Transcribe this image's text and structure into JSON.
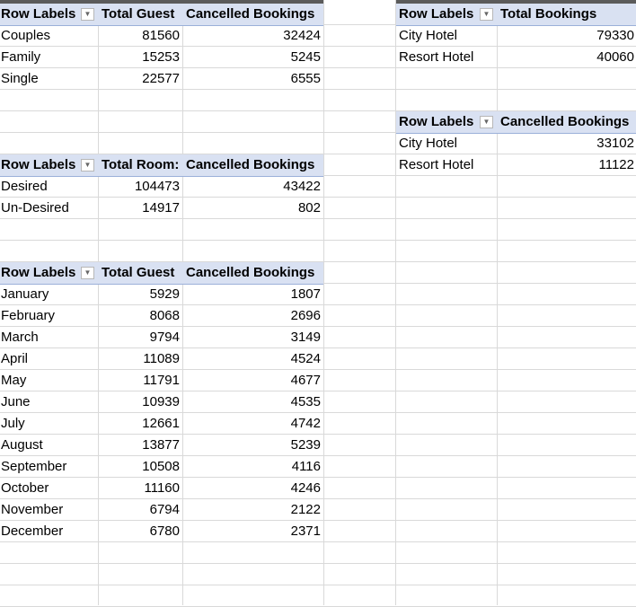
{
  "dropdown_icon": "filter-dropdown-icon",
  "pivots": {
    "guest_type": {
      "headers": [
        "Row Labels",
        "Total Guest",
        "Cancelled Bookings"
      ],
      "rows": [
        [
          "Couples",
          "81560",
          "32424"
        ],
        [
          "Family",
          "15253",
          "5245"
        ],
        [
          "Single",
          "22577",
          "6555"
        ]
      ]
    },
    "rooms": {
      "headers": [
        "Row Labels",
        "Total Room:",
        "Cancelled Bookings"
      ],
      "rows": [
        [
          "Desired",
          "104473",
          "43422"
        ],
        [
          "Un-Desired",
          "14917",
          "802"
        ]
      ]
    },
    "months": {
      "headers": [
        "Row Labels",
        "Total Guest",
        "Cancelled Bookings"
      ],
      "rows": [
        [
          "January",
          "5929",
          "1807"
        ],
        [
          "February",
          "8068",
          "2696"
        ],
        [
          "March",
          "9794",
          "3149"
        ],
        [
          "April",
          "11089",
          "4524"
        ],
        [
          "May",
          "11791",
          "4677"
        ],
        [
          "June",
          "10939",
          "4535"
        ],
        [
          "July",
          "12661",
          "4742"
        ],
        [
          "August",
          "13877",
          "5239"
        ],
        [
          "September",
          "10508",
          "4116"
        ],
        [
          "October",
          "11160",
          "4246"
        ],
        [
          "November",
          "6794",
          "2122"
        ],
        [
          "December",
          "6780",
          "2371"
        ]
      ]
    },
    "hotel_bookings": {
      "headers": [
        "Row Labels",
        "Total Bookings"
      ],
      "rows": [
        [
          "City Hotel",
          "79330"
        ],
        [
          "Resort Hotel",
          "40060"
        ]
      ]
    },
    "hotel_cancelled": {
      "headers": [
        "Row Labels",
        "Cancelled Bookings"
      ],
      "rows": [
        [
          "City Hotel",
          "33102"
        ],
        [
          "Resort Hotel",
          "11122"
        ]
      ]
    }
  }
}
